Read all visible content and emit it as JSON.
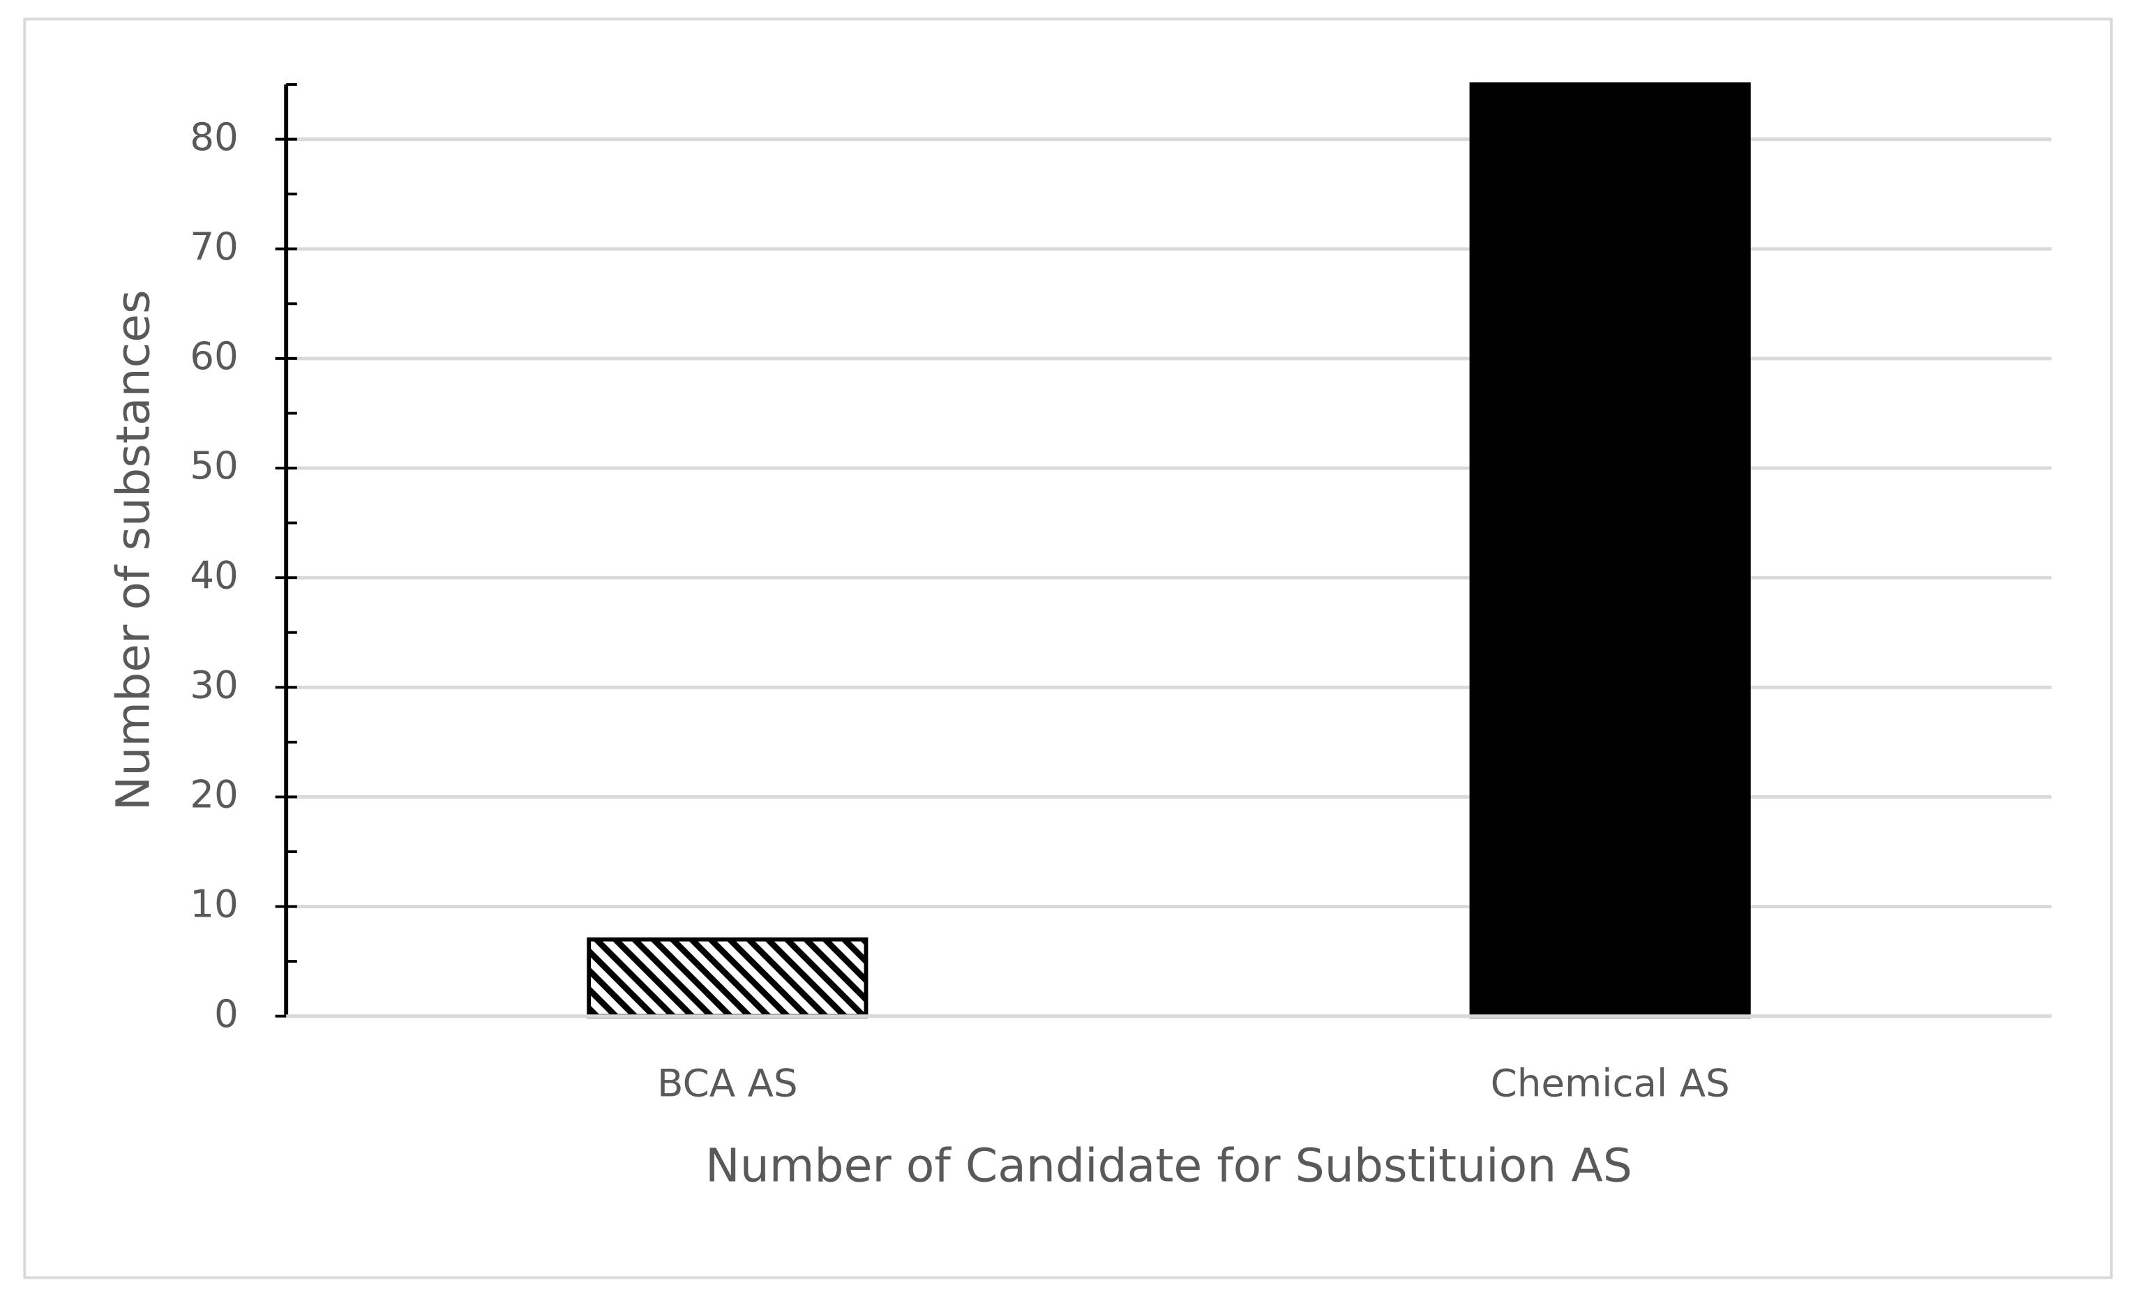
{
  "chart_data": {
    "type": "bar",
    "x_label": "Number of Candidate for Substituion AS",
    "y_label": "Number of substances",
    "categories": [
      "BCA AS",
      "Chemical AS"
    ],
    "values": [
      7,
      85
    ],
    "color": "#000000",
    "hatch": [
      true,
      false
    ],
    "ylim": [
      0,
      85
    ],
    "yticks": [
      0,
      10,
      20,
      30,
      40,
      50,
      60,
      70,
      80
    ],
    "grid": true
  }
}
